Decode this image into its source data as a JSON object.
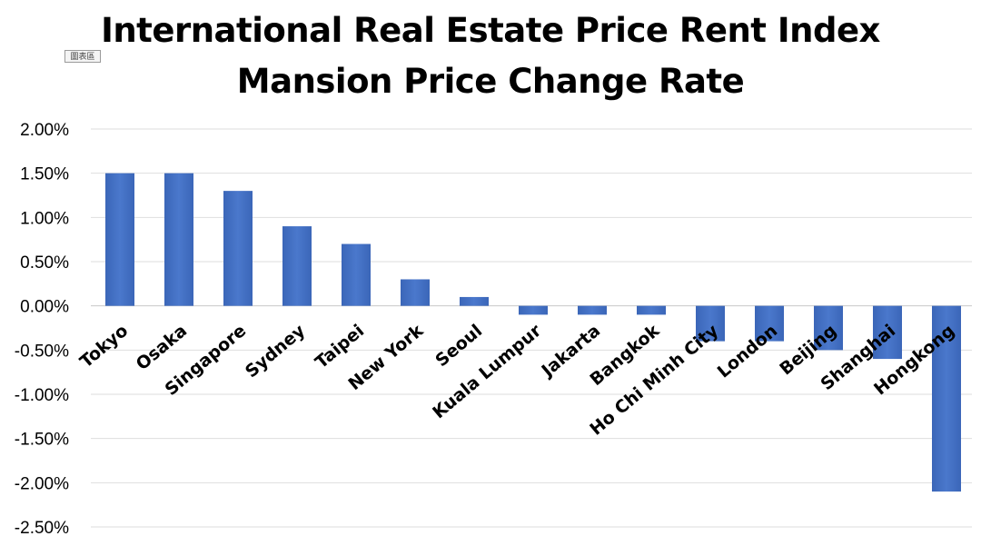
{
  "chart_area_tag": "圖表區",
  "chart_data": {
    "type": "bar",
    "title": "International Real Estate Price Rent Index",
    "subtitle": "Mansion Price Change Rate",
    "xlabel": "",
    "ylabel": "",
    "categories": [
      "Tokyo",
      "Osaka",
      "Singapore",
      "Sydney",
      "Taipei",
      "New York",
      "Seoul",
      "Kuala Lumpur",
      "Jakarta",
      "Bangkok",
      "Ho Chi Minh City",
      "London",
      "Beijing",
      "Shanghai",
      "Hongkong"
    ],
    "values": [
      1.5,
      1.5,
      1.3,
      0.9,
      0.7,
      0.3,
      0.1,
      -0.1,
      -0.1,
      -0.1,
      -0.4,
      -0.4,
      -0.5,
      -0.6,
      -2.1
    ],
    "ylim": [
      -2.5,
      2.0
    ],
    "yticks": [
      2.0,
      1.5,
      1.0,
      0.5,
      0.0,
      -0.5,
      -1.0,
      -1.5,
      -2.0,
      -2.5
    ],
    "ytick_labels": [
      "2.00%",
      "1.50%",
      "1.00%",
      "0.50%",
      "0.00%",
      "-0.50%",
      "-1.00%",
      "-1.50%",
      "-2.00%",
      "-2.50%"
    ],
    "grid": true,
    "bar_color": "#4472c4",
    "legend": "none"
  }
}
